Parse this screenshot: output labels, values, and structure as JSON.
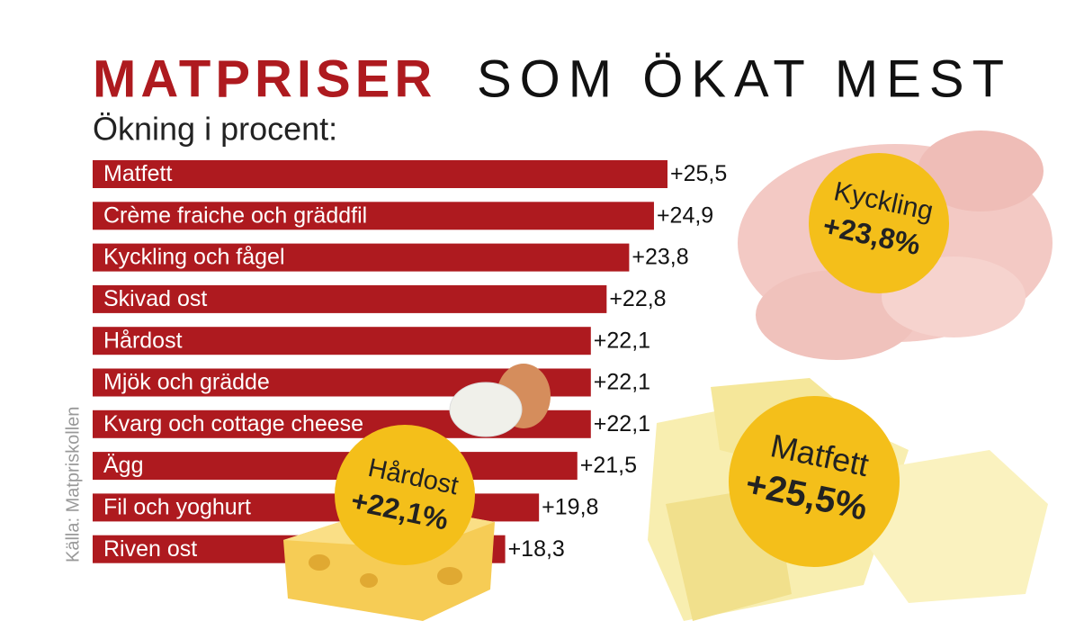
{
  "chart_data": {
    "type": "bar",
    "orientation": "horizontal",
    "title": [
      "MATPRISER",
      "SOM ÖKAT MEST"
    ],
    "subtitle": "Ökning i procent:",
    "source": "Källa: Matpriskollen",
    "color": "#ae1a1f",
    "categories": [
      "Matfett",
      "Crème fraiche och gräddfil",
      "Kyckling och fågel",
      "Skivad ost",
      "Hårdost",
      "Mjök och grädde",
      "Kvarg och cottage cheese",
      "Ägg",
      "Fil och yoghurt",
      "Riven ost"
    ],
    "values": [
      25.5,
      24.9,
      23.8,
      22.8,
      22.1,
      22.1,
      22.1,
      21.5,
      19.8,
      18.3
    ],
    "value_labels": [
      "+25,5",
      "+24,9",
      "+23,8",
      "+22,8",
      "+22,1",
      "+22,1",
      "+22,1",
      "+21,5",
      "+19,8",
      "+18,3"
    ],
    "annotations": [
      {
        "text": "Kyckling",
        "value_text": "+23,8%"
      },
      {
        "text": "Hårdost",
        "value_text": "+22,1%"
      },
      {
        "text": "Matfett",
        "value_text": "+25,5%"
      }
    ]
  }
}
